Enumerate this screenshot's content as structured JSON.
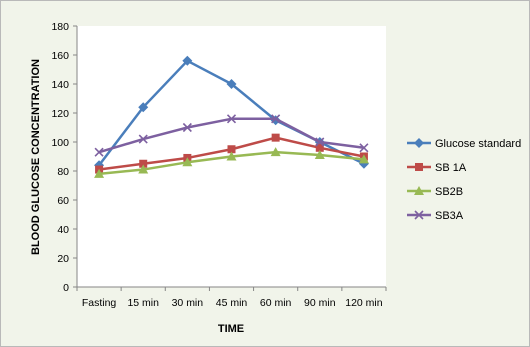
{
  "chart_data": {
    "type": "line",
    "categories": [
      "Fasting",
      "15 min",
      "30 min",
      "45 min",
      "60 min",
      "90 min",
      "120 min"
    ],
    "series": [
      {
        "name": "Glucose standard",
        "values": [
          84,
          124,
          156,
          140,
          115,
          100,
          85
        ],
        "color": "#4a7ebb",
        "marker": "diamond"
      },
      {
        "name": "SB 1A",
        "values": [
          81,
          85,
          89,
          95,
          103,
          96,
          90
        ],
        "color": "#be4b48",
        "marker": "square"
      },
      {
        "name": "SB2B",
        "values": [
          78,
          81,
          86,
          90,
          93,
          91,
          88
        ],
        "color": "#98b954",
        "marker": "triangle"
      },
      {
        "name": "SB3A",
        "values": [
          93,
          102,
          110,
          116,
          116,
          100,
          96
        ],
        "color": "#7d60a0",
        "marker": "x"
      }
    ],
    "xlabel": "TIME",
    "ylabel": "BLOOD GLUCOSE CONCENTRATION",
    "ylim": [
      0,
      180
    ],
    "yticks": [
      "0",
      "20",
      "40",
      "60",
      "80",
      "100",
      "120",
      "140",
      "160",
      "180"
    ],
    "grid": false,
    "legend": "right"
  }
}
